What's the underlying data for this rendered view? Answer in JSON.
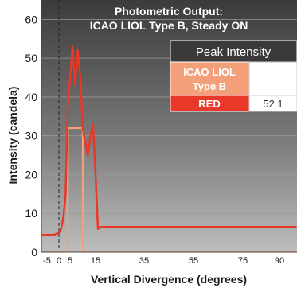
{
  "chart_data": {
    "type": "line",
    "title": "Photometric Output:",
    "subtitle": "ICAO LIOL Type B, Steady ON",
    "xlabel": "Vertical Divergence (degrees)",
    "ylabel": "Intensity (candela)",
    "xlim": [
      -7,
      97
    ],
    "ylim": [
      0,
      65
    ],
    "x_ticks": [
      -5,
      0,
      5,
      15,
      35,
      55,
      75,
      90
    ],
    "y_ticks": [
      0,
      10,
      20,
      30,
      40,
      50,
      60
    ],
    "grid": "horizontal",
    "reference_lines": [
      {
        "x": 0,
        "style": "dashed"
      }
    ],
    "series": [
      {
        "name": "RED",
        "color": "#e8382a",
        "x": [
          -7,
          -2,
          0,
          1,
          2,
          3,
          4,
          5,
          6,
          7,
          8,
          9,
          10,
          11,
          12,
          13,
          14,
          15,
          16,
          17,
          97
        ],
        "y": [
          4.5,
          4.5,
          5,
          6,
          9,
          15,
          38,
          45,
          53,
          43,
          52,
          45,
          32,
          28,
          25,
          30,
          33,
          20,
          6,
          6.5,
          6.5
        ]
      },
      {
        "name": "ICAO LIOL Type B",
        "color": "#f3a07a",
        "x": [
          -7,
          3.9,
          4,
          10,
          10.1,
          97
        ],
        "y": [
          0,
          0,
          32,
          32,
          0,
          0
        ]
      }
    ],
    "table": {
      "header": "Peak Intensity",
      "rows": [
        {
          "label": "ICAO LIOL Type B",
          "label_lines": [
            "ICAO LIOL",
            "Type B"
          ],
          "value": "",
          "color": "#f3a07a"
        },
        {
          "label": "RED",
          "value": "52.1",
          "color": "#e8382a"
        }
      ]
    }
  }
}
